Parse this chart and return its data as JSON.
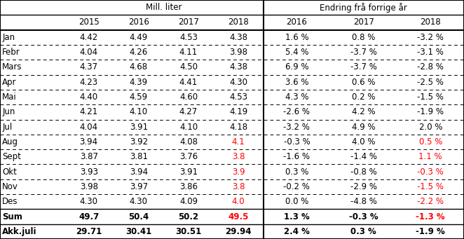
{
  "months": [
    "Jan",
    "Febr",
    "Mars",
    "Apr",
    "Mai",
    "Jun",
    "Jul",
    "Aug",
    "Sept",
    "Okt",
    "Nov",
    "Des",
    "Sum",
    "Akk.juli"
  ],
  "mill_liter": {
    "2015": [
      "4.42",
      "4.04",
      "4.37",
      "4.23",
      "4.40",
      "4.21",
      "4.04",
      "3.94",
      "3.87",
      "3.93",
      "3.98",
      "4.30",
      "49.7",
      "29.71"
    ],
    "2016": [
      "4.49",
      "4.26",
      "4.68",
      "4.39",
      "4.59",
      "4.10",
      "3.91",
      "3.92",
      "3.81",
      "3.94",
      "3.97",
      "4.30",
      "50.4",
      "30.41"
    ],
    "2017": [
      "4.53",
      "4.11",
      "4.50",
      "4.41",
      "4.60",
      "4.27",
      "4.10",
      "4.08",
      "3.76",
      "3.91",
      "3.86",
      "4.09",
      "50.2",
      "30.51"
    ],
    "2018": [
      "4.38",
      "3.98",
      "4.38",
      "4.30",
      "4.53",
      "4.19",
      "4.18",
      "4.1",
      "3.8",
      "3.9",
      "3.8",
      "4.0",
      "49.5",
      "29.94"
    ]
  },
  "endring": {
    "2016": [
      "1.6 %",
      "5.4 %",
      "6.9 %",
      "3.6 %",
      "4.3 %",
      "-2.6 %",
      "-3.2 %",
      "-0.3 %",
      "-1.6 %",
      "0.3 %",
      "-0.2 %",
      "0.0 %",
      "1.3 %",
      "2.4 %"
    ],
    "2017": [
      "0.8 %",
      "-3.7 %",
      "-3.7 %",
      "0.6 %",
      "0.2 %",
      "4.2 %",
      "4.9 %",
      "4.0 %",
      "-1.4 %",
      "-0.8 %",
      "-2.9 %",
      "-4.8 %",
      "-0.3 %",
      "0.3 %"
    ],
    "2018": [
      "-3.2 %",
      "-3.1 %",
      "-2.8 %",
      "-2.5 %",
      "-1.5 %",
      "-1.9 %",
      "2.0 %",
      "0.5 %",
      "1.1 %",
      "-0.3 %",
      "-1.5 %",
      "-2.2 %",
      "-1.3 %",
      "-1.9 %"
    ]
  },
  "red_rows": [
    7,
    8,
    9,
    10,
    11,
    12
  ],
  "bold_rows": [
    12,
    13
  ],
  "header1_mill": "Mill. liter",
  "header1_endring": "Endring frå forrige år",
  "col_years_mill": [
    "2015",
    "2016",
    "2017",
    "2018"
  ],
  "col_years_endring": [
    "2016",
    "2017",
    "2018"
  ],
  "background_color": "#FFFFFF",
  "red_color": "#FF0000",
  "black_color": "#000000"
}
